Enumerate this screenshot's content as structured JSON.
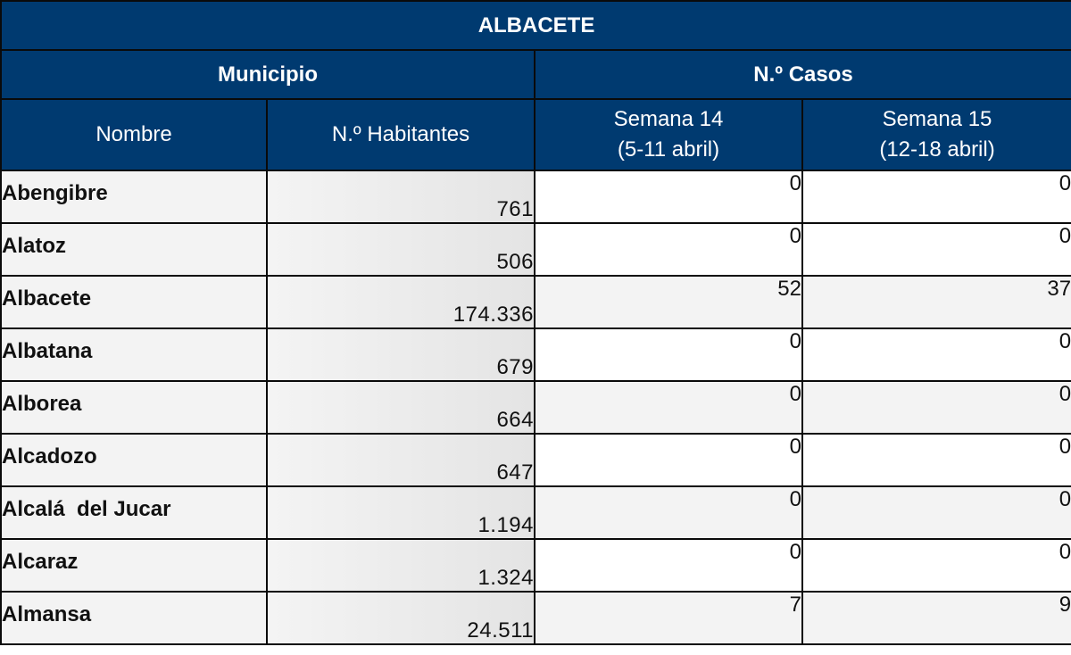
{
  "table": {
    "title": "ALBACETE",
    "group_municipio": "Municipio",
    "group_casos": "N.º Casos",
    "col_nombre": "Nombre",
    "col_habitantes": "N.º Habitantes",
    "col_semana14": [
      "Semana 14",
      "(5-11 abril)"
    ],
    "col_semana15": [
      "Semana 15",
      "(12-18 abril)"
    ],
    "rows": [
      {
        "nombre": "Abengibre",
        "habitantes": "761",
        "semana14": "0",
        "semana15": "0"
      },
      {
        "nombre": "Alatoz",
        "habitantes": "506",
        "semana14": "0",
        "semana15": "0"
      },
      {
        "nombre": "Albacete",
        "habitantes": "174.336",
        "semana14": "52",
        "semana15": "37"
      },
      {
        "nombre": "Albatana",
        "habitantes": "679",
        "semana14": "0",
        "semana15": "0"
      },
      {
        "nombre": "Alborea",
        "habitantes": "664",
        "semana14": "0",
        "semana15": "0"
      },
      {
        "nombre": "Alcadozo",
        "habitantes": "647",
        "semana14": "0",
        "semana15": "0"
      },
      {
        "nombre": "Alcalá  del Jucar",
        "habitantes": "1.194",
        "semana14": "0",
        "semana15": "0"
      },
      {
        "nombre": "Alcaraz",
        "habitantes": "1.324",
        "semana14": "0",
        "semana15": "0"
      },
      {
        "nombre": "Almansa",
        "habitantes": "24.511",
        "semana14": "7",
        "semana15": "9"
      }
    ]
  }
}
